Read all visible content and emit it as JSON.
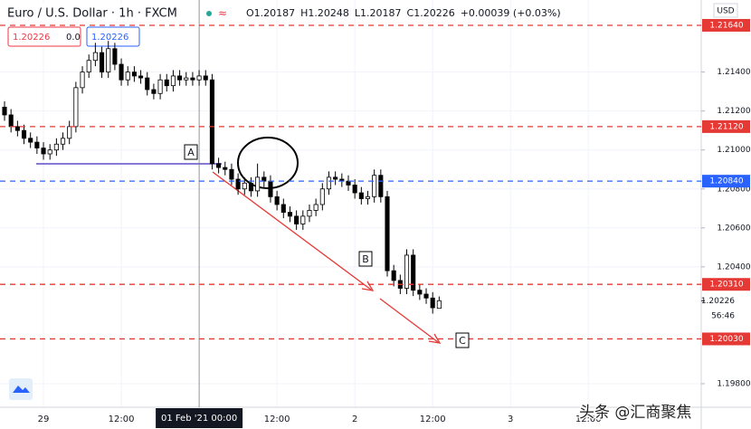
{
  "chart_data": {
    "type": "candlestick",
    "title": "Euro / U.S. Dollar · 1h · FXCM",
    "ohlc_readout": [
      "O1.20187",
      "H1.20248",
      "L1.20187",
      "C1.20226",
      "+0.00039 (+0.03%)"
    ],
    "order_panel": [
      "1.20226",
      "0.0",
      "1.20226"
    ],
    "currency": "USD",
    "countdown": "56:46",
    "open": [
      1.2122,
      1.2118,
      1.2112,
      1.211,
      1.2106,
      1.2104,
      1.2101,
      1.2098,
      1.21,
      1.2103,
      1.2106,
      1.2112,
      1.2132,
      1.214,
      1.2146,
      1.215,
      1.214,
      1.2152,
      1.2144,
      1.2136,
      1.214,
      1.2138,
      1.2137,
      1.2131,
      1.2129,
      1.2136,
      1.2133,
      1.2138,
      1.2136,
      1.2137,
      1.2136,
      1.2138,
      1.2136,
      1.2093,
      1.2091,
      1.209,
      1.2085,
      1.208,
      1.2083,
      1.2079,
      1.2086,
      1.2084,
      1.2076,
      1.2072,
      1.2068,
      1.2066,
      1.2062,
      1.2066,
      1.2069,
      1.2072,
      1.208,
      1.2086,
      1.2085,
      1.2084,
      1.2082,
      1.2078,
      1.2075,
      1.2076,
      1.2087,
      1.2076,
      1.2038,
      1.2033,
      1.2029,
      1.2046,
      1.2028,
      1.2026,
      1.2024,
      1.20187
    ],
    "high": [
      1.2125,
      1.2121,
      1.2115,
      1.2113,
      1.2109,
      1.2107,
      1.2104,
      1.2103,
      1.2106,
      1.2109,
      1.2115,
      1.2135,
      1.2143,
      1.2149,
      1.2155,
      1.2153,
      1.2156,
      1.2155,
      1.2147,
      1.2143,
      1.2143,
      1.2141,
      1.214,
      1.2134,
      1.2139,
      1.2139,
      1.2141,
      1.2141,
      1.214,
      1.214,
      1.2141,
      1.2141,
      1.2139,
      1.2096,
      1.2094,
      1.2093,
      1.2088,
      1.2086,
      1.2086,
      1.2093,
      1.2089,
      1.2087,
      1.2079,
      1.2075,
      1.2071,
      1.2069,
      1.2069,
      1.2072,
      1.2075,
      1.2083,
      1.2089,
      1.2089,
      1.2088,
      1.2087,
      1.2085,
      1.2081,
      1.2079,
      1.209,
      1.209,
      1.2079,
      1.2041,
      1.2036,
      1.2049,
      1.2049,
      1.2031,
      1.2029,
      1.2027,
      1.20248
    ],
    "low": [
      1.2115,
      1.2109,
      1.2107,
      1.2103,
      1.2101,
      1.2098,
      1.2095,
      1.2095,
      1.2097,
      1.21,
      1.2103,
      1.2109,
      1.2129,
      1.2137,
      1.2143,
      1.2137,
      1.2137,
      1.2141,
      1.2133,
      1.2133,
      1.2135,
      1.2134,
      1.2128,
      1.2126,
      1.2126,
      1.213,
      1.213,
      1.2133,
      1.2133,
      1.2133,
      1.2133,
      1.2133,
      1.209,
      1.2088,
      1.2087,
      1.2082,
      1.2077,
      1.2077,
      1.2076,
      1.2076,
      1.2081,
      1.2073,
      1.2069,
      1.2065,
      1.2063,
      1.2059,
      1.2059,
      1.2063,
      1.2066,
      1.2069,
      1.2077,
      1.2082,
      1.2081,
      1.2079,
      1.2075,
      1.2072,
      1.2072,
      1.2073,
      1.2073,
      1.2035,
      1.203,
      1.2026,
      1.2026,
      1.2025,
      1.2023,
      1.2021,
      1.2016,
      1.20187
    ],
    "close": [
      1.2118,
      1.2112,
      1.211,
      1.2106,
      1.2104,
      1.2101,
      1.2098,
      1.21,
      1.2103,
      1.2106,
      1.2112,
      1.2132,
      1.214,
      1.2146,
      1.215,
      1.214,
      1.2152,
      1.2144,
      1.2136,
      1.214,
      1.2138,
      1.2137,
      1.2131,
      1.2129,
      1.2136,
      1.2133,
      1.2138,
      1.2136,
      1.2137,
      1.2136,
      1.2138,
      1.2136,
      1.2093,
      1.2091,
      1.209,
      1.2085,
      1.208,
      1.2083,
      1.2079,
      1.2086,
      1.2084,
      1.2076,
      1.2072,
      1.2068,
      1.2066,
      1.2062,
      1.2066,
      1.2069,
      1.2072,
      1.208,
      1.2086,
      1.2085,
      1.2084,
      1.2082,
      1.2078,
      1.2075,
      1.2076,
      1.2087,
      1.2076,
      1.2038,
      1.2033,
      1.2029,
      1.2046,
      1.2028,
      1.2026,
      1.2024,
      1.2019,
      1.20226
    ],
    "up_color": "#ffffff",
    "down_color": "#000000",
    "xlim": [
      -0.7,
      107.4
    ],
    "xticks": [
      {
        "value": 6,
        "label": "29"
      },
      {
        "value": 18,
        "label": "12:00"
      },
      {
        "value": 42,
        "label": "12:00"
      },
      {
        "value": 54,
        "label": "2"
      },
      {
        "value": 66,
        "label": "12:00"
      },
      {
        "value": 78,
        "label": "3"
      },
      {
        "value": 90,
        "label": "12:00"
      }
    ],
    "crosshair": {
      "value": 30,
      "label": "01 Feb '21  00:00"
    },
    "ylim": [
      1.19679,
      1.2177
    ],
    "yticks": [
      {
        "value": 1.214,
        "label": "1.21400"
      },
      {
        "value": 1.212,
        "label": "1.21200"
      },
      {
        "value": 1.21,
        "label": "1.21000"
      },
      {
        "value": 1.208,
        "label": "1.20800"
      },
      {
        "value": 1.206,
        "label": "1.20600"
      },
      {
        "value": 1.204,
        "label": "1.20400"
      },
      {
        "value": 1.198,
        "label": "1.19800"
      }
    ],
    "levels": [
      {
        "value": 1.2164,
        "label": "1.21640",
        "color": "#e53935"
      },
      {
        "value": 1.2112,
        "label": "1.21120",
        "color": "#e53935"
      },
      {
        "value": 1.2084,
        "label": "1.20840",
        "color": "#2962ff"
      },
      {
        "value": 1.2031,
        "label": "1.20310",
        "color": "#e53935"
      },
      {
        "value": 1.2003,
        "label": "1.20030",
        "color": "#e53935"
      }
    ],
    "last_price": 1.20226,
    "annotations": [
      "A",
      "B",
      "C"
    ],
    "watermark": "头条 @汇商聚焦"
  }
}
